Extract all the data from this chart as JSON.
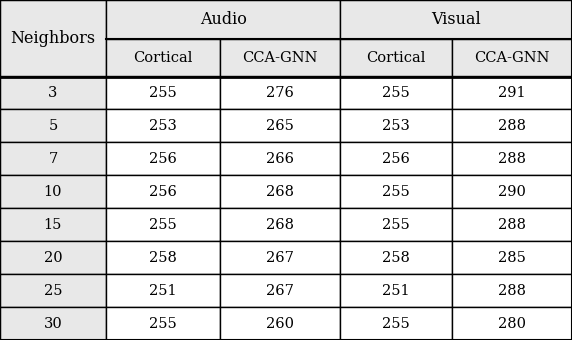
{
  "neighbors": [
    3,
    5,
    7,
    10,
    15,
    20,
    25,
    30
  ],
  "audio_cortical": [
    255,
    253,
    256,
    256,
    255,
    258,
    251,
    255
  ],
  "audio_cca_gnn": [
    276,
    265,
    266,
    268,
    268,
    267,
    267,
    260
  ],
  "visual_cortical": [
    255,
    253,
    256,
    255,
    255,
    258,
    251,
    255
  ],
  "visual_cca_gnn": [
    291,
    288,
    288,
    290,
    288,
    285,
    288,
    280
  ],
  "col_header1": "Neighbors",
  "col_header2_span": "Audio",
  "col_header3_span": "Visual",
  "sub_header_cortical": "Cortical",
  "sub_header_cca_gnn": "CCA-GNN",
  "bg_header": "#e8e8e8",
  "bg_white": "#ffffff",
  "border_color": "#000000",
  "font_size": 10.5,
  "header_font_size": 11.5
}
